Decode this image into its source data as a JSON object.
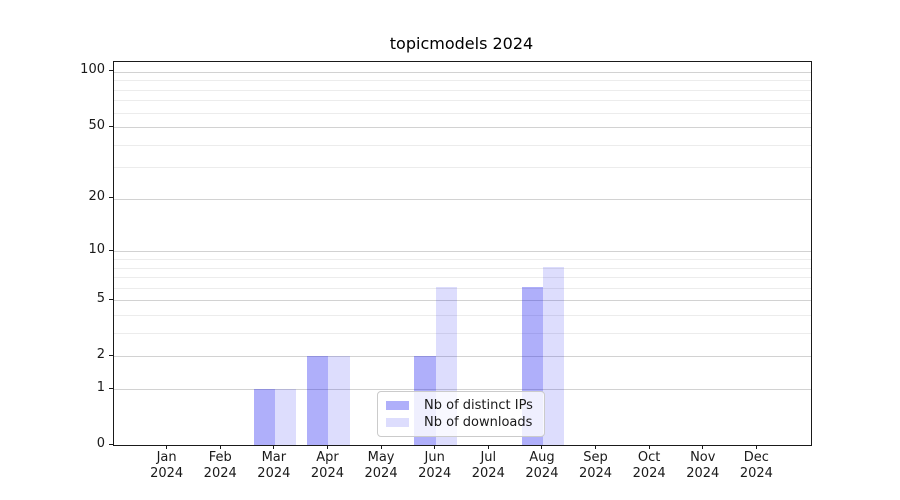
{
  "title": "topicmodels 2024",
  "chart_data": {
    "type": "bar",
    "title": "topicmodels 2024",
    "categories": [
      "Jan",
      "Feb",
      "Mar",
      "Apr",
      "May",
      "Jun",
      "Jul",
      "Aug",
      "Sep",
      "Oct",
      "Nov",
      "Dec"
    ],
    "year_label": "2024",
    "series": [
      {
        "name": "Nb of distinct IPs",
        "color": "rgba(25,25,240,0.35)",
        "values": [
          0,
          0,
          1,
          2,
          0,
          2,
          0,
          6,
          0,
          0,
          0,
          0
        ]
      },
      {
        "name": "Nb of downloads",
        "color": "rgba(25,25,240,0.15)",
        "values": [
          0,
          0,
          1,
          2,
          0,
          6,
          0,
          8,
          0,
          0,
          0,
          0
        ]
      }
    ],
    "yscale": "log1p",
    "ylim": [
      0,
      113
    ],
    "yticks": [
      0,
      1,
      2,
      5,
      10,
      20,
      50,
      100
    ],
    "minor_yticks": [
      3,
      4,
      6,
      7,
      8,
      9,
      30,
      40,
      60,
      70,
      80,
      90
    ],
    "grid": true,
    "legend_position": "lower-center",
    "colors": {
      "major_grid": "#d2d2d2",
      "minor_grid": "#ececec",
      "axis": "#1a1a1a",
      "background": "#ffffff"
    }
  }
}
